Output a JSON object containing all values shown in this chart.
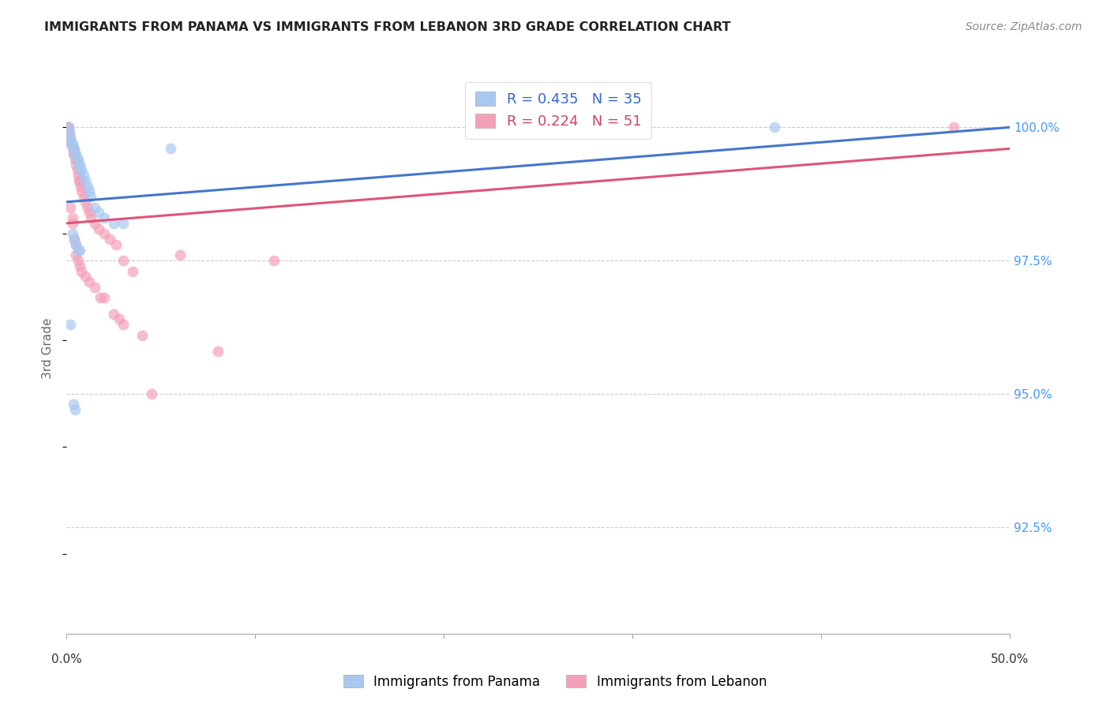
{
  "title": "IMMIGRANTS FROM PANAMA VS IMMIGRANTS FROM LEBANON 3RD GRADE CORRELATION CHART",
  "source": "Source: ZipAtlas.com",
  "ylabel": "3rd Grade",
  "ylabel_right_values": [
    100.0,
    97.5,
    95.0,
    92.5
  ],
  "legend_blue_r": "R = 0.435",
  "legend_blue_n": "N = 35",
  "legend_pink_r": "R = 0.224",
  "legend_pink_n": "N = 51",
  "blue_color": "#A8C8F0",
  "pink_color": "#F4A0B8",
  "blue_line_color": "#4477CC",
  "pink_line_color": "#DD5577",
  "blue_label": "Immigrants from Panama",
  "pink_label": "Immigrants from Lebanon",
  "x_min": 0.0,
  "x_max": 50.0,
  "y_min": 90.5,
  "y_max": 101.2,
  "blue_points_x": [
    0.1,
    0.15,
    0.2,
    0.25,
    0.3,
    0.35,
    0.4,
    0.45,
    0.5,
    0.55,
    0.6,
    0.65,
    0.7,
    0.75,
    0.8,
    0.9,
    1.0,
    1.1,
    1.2,
    1.3,
    1.5,
    1.7,
    2.0,
    2.5,
    3.0,
    0.3,
    0.4,
    0.5,
    0.6,
    0.7,
    5.5,
    37.5,
    0.2,
    0.35,
    0.45
  ],
  "blue_points_y": [
    100.0,
    99.9,
    99.8,
    99.7,
    99.7,
    99.6,
    99.6,
    99.5,
    99.5,
    99.4,
    99.4,
    99.3,
    99.3,
    99.2,
    99.2,
    99.1,
    99.0,
    98.9,
    98.8,
    98.7,
    98.5,
    98.4,
    98.3,
    98.2,
    98.2,
    98.0,
    97.9,
    97.8,
    97.7,
    97.7,
    99.6,
    100.0,
    96.3,
    94.8,
    94.7
  ],
  "pink_points_x": [
    0.05,
    0.1,
    0.15,
    0.2,
    0.25,
    0.3,
    0.35,
    0.4,
    0.45,
    0.5,
    0.55,
    0.6,
    0.65,
    0.7,
    0.75,
    0.8,
    0.9,
    1.0,
    1.1,
    1.2,
    1.3,
    1.5,
    1.7,
    2.0,
    2.3,
    2.6,
    3.0,
    3.5,
    0.2,
    0.3,
    0.4,
    0.5,
    0.6,
    0.7,
    0.8,
    1.0,
    1.5,
    2.0,
    2.5,
    3.0,
    4.5,
    6.0,
    11.0,
    0.3,
    0.5,
    1.2,
    1.8,
    2.8,
    4.0,
    8.0,
    47.0
  ],
  "pink_points_y": [
    100.0,
    100.0,
    99.9,
    99.8,
    99.7,
    99.6,
    99.5,
    99.5,
    99.4,
    99.3,
    99.2,
    99.1,
    99.0,
    99.0,
    98.9,
    98.8,
    98.7,
    98.6,
    98.5,
    98.4,
    98.3,
    98.2,
    98.1,
    98.0,
    97.9,
    97.8,
    97.5,
    97.3,
    98.5,
    98.3,
    97.9,
    97.6,
    97.5,
    97.4,
    97.3,
    97.2,
    97.0,
    96.8,
    96.5,
    96.3,
    95.0,
    97.6,
    97.5,
    98.2,
    97.8,
    97.1,
    96.8,
    96.4,
    96.1,
    95.8,
    100.0
  ],
  "blue_trend_x": [
    0.0,
    50.0
  ],
  "blue_trend_y": [
    98.6,
    100.0
  ],
  "pink_trend_x": [
    0.0,
    50.0
  ],
  "pink_trend_y": [
    98.2,
    99.6
  ]
}
